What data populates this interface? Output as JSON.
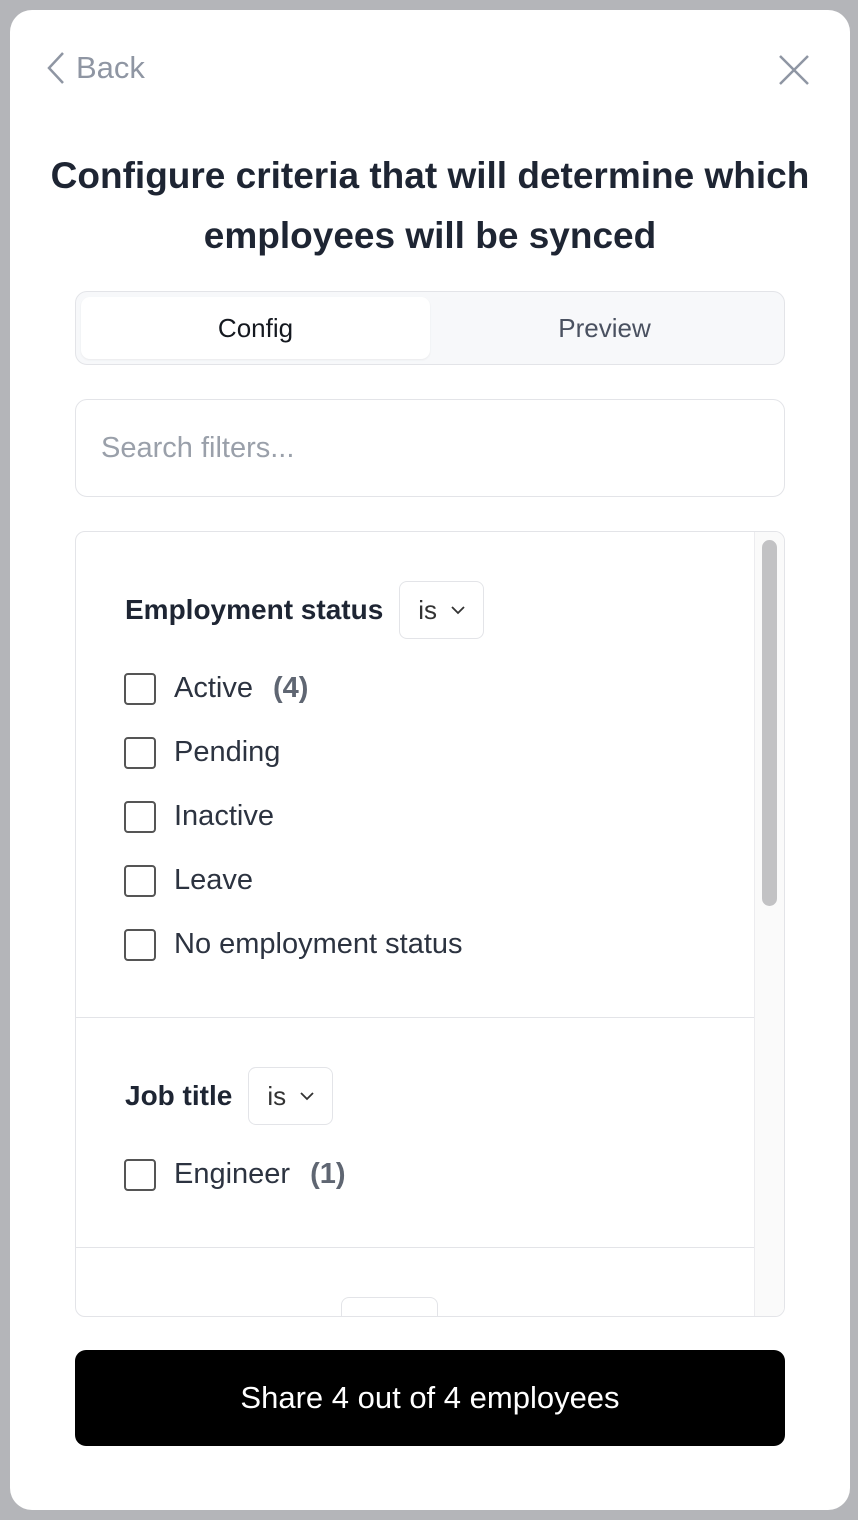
{
  "header": {
    "back_label": "Back",
    "title": "Configure criteria that will determine which employees will be synced"
  },
  "tabs": [
    {
      "label": "Config",
      "active": true
    },
    {
      "label": "Preview",
      "active": false
    }
  ],
  "search": {
    "placeholder": "Search filters...",
    "value": ""
  },
  "filters": [
    {
      "name": "Employment status",
      "operator": "is",
      "options": [
        {
          "label": "Active",
          "count": "(4)",
          "checked": false
        },
        {
          "label": "Pending",
          "checked": false
        },
        {
          "label": "Inactive",
          "checked": false
        },
        {
          "label": "Leave",
          "checked": false
        },
        {
          "label": "No employment status",
          "checked": false
        }
      ]
    },
    {
      "name": "Job title",
      "operator": "is",
      "options": [
        {
          "label": "Engineer",
          "count": "(1)",
          "checked": false
        }
      ]
    }
  ],
  "footer": {
    "share_label": "Share 4 out of 4 employees"
  },
  "colors": {
    "primary_button": "#000000",
    "title": "#1e2533"
  }
}
